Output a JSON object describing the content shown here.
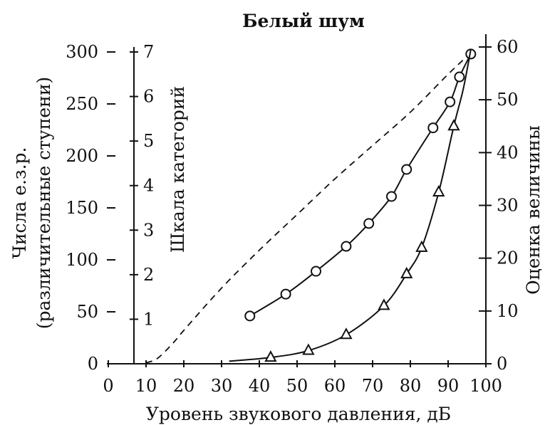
{
  "chart_data": {
    "type": "line",
    "title": "Белый шум",
    "xlabel": "Уровень звукового давления, дБ",
    "xlim": [
      0,
      100
    ],
    "x_ticks": [
      "0",
      "10",
      "20",
      "30",
      "40",
      "50",
      "60",
      "70",
      "80",
      "90",
      "100"
    ],
    "left_axis": {
      "label_line1": "Числа е.з.р.",
      "label_line2": "(различительные ступени)",
      "ylim": [
        0,
        300
      ],
      "ticks": [
        "0",
        "50",
        "100",
        "150",
        "200",
        "250",
        "300"
      ]
    },
    "category_axis": {
      "label": "Шкала категорий",
      "ylim": [
        0,
        7
      ],
      "ticks": [
        "1",
        "2",
        "3",
        "4",
        "5",
        "6",
        "7"
      ]
    },
    "right_axis": {
      "label": "Оценка величины",
      "ylim": [
        0,
        60
      ],
      "ticks": [
        "0",
        "10",
        "20",
        "30",
        "40",
        "50",
        "60"
      ]
    },
    "series": [
      {
        "axis": "left",
        "marker": "circle",
        "style": "solid",
        "points": [
          [
            37.5,
            46
          ],
          [
            47,
            67
          ],
          [
            55,
            89
          ],
          [
            63,
            113
          ],
          [
            69,
            135
          ],
          [
            75,
            161
          ],
          [
            79,
            187
          ],
          [
            86,
            227
          ],
          [
            90.5,
            252
          ],
          [
            93,
            276
          ],
          [
            96,
            298
          ]
        ]
      },
      {
        "axis": "right",
        "marker": "triangle",
        "style": "solid",
        "curve": [
          [
            32,
            0.5
          ],
          [
            43,
            1.2
          ],
          [
            53,
            2.5
          ],
          [
            63,
            5.5
          ],
          [
            73,
            11
          ],
          [
            79,
            17
          ],
          [
            83,
            22
          ],
          [
            87.5,
            32.5
          ],
          [
            91.5,
            45
          ],
          [
            94,
            52
          ],
          [
            96,
            59.5
          ]
        ],
        "points": [
          [
            43,
            1.2
          ],
          [
            53,
            2.5
          ],
          [
            63,
            5.5
          ],
          [
            73,
            11
          ],
          [
            79,
            17
          ],
          [
            83,
            22
          ],
          [
            87.5,
            32.5
          ],
          [
            91.5,
            45
          ]
        ]
      },
      {
        "axis": "category",
        "marker": "none",
        "style": "dashed",
        "points": [
          [
            10,
            0.02
          ],
          [
            13,
            0.12
          ],
          [
            17,
            0.45
          ],
          [
            20,
            0.75
          ],
          [
            30,
            1.7
          ],
          [
            40,
            2.55
          ],
          [
            50,
            3.35
          ],
          [
            60,
            4.15
          ],
          [
            70,
            4.9
          ],
          [
            80,
            5.65
          ],
          [
            90,
            6.5
          ],
          [
            95,
            6.9
          ]
        ]
      }
    ]
  }
}
